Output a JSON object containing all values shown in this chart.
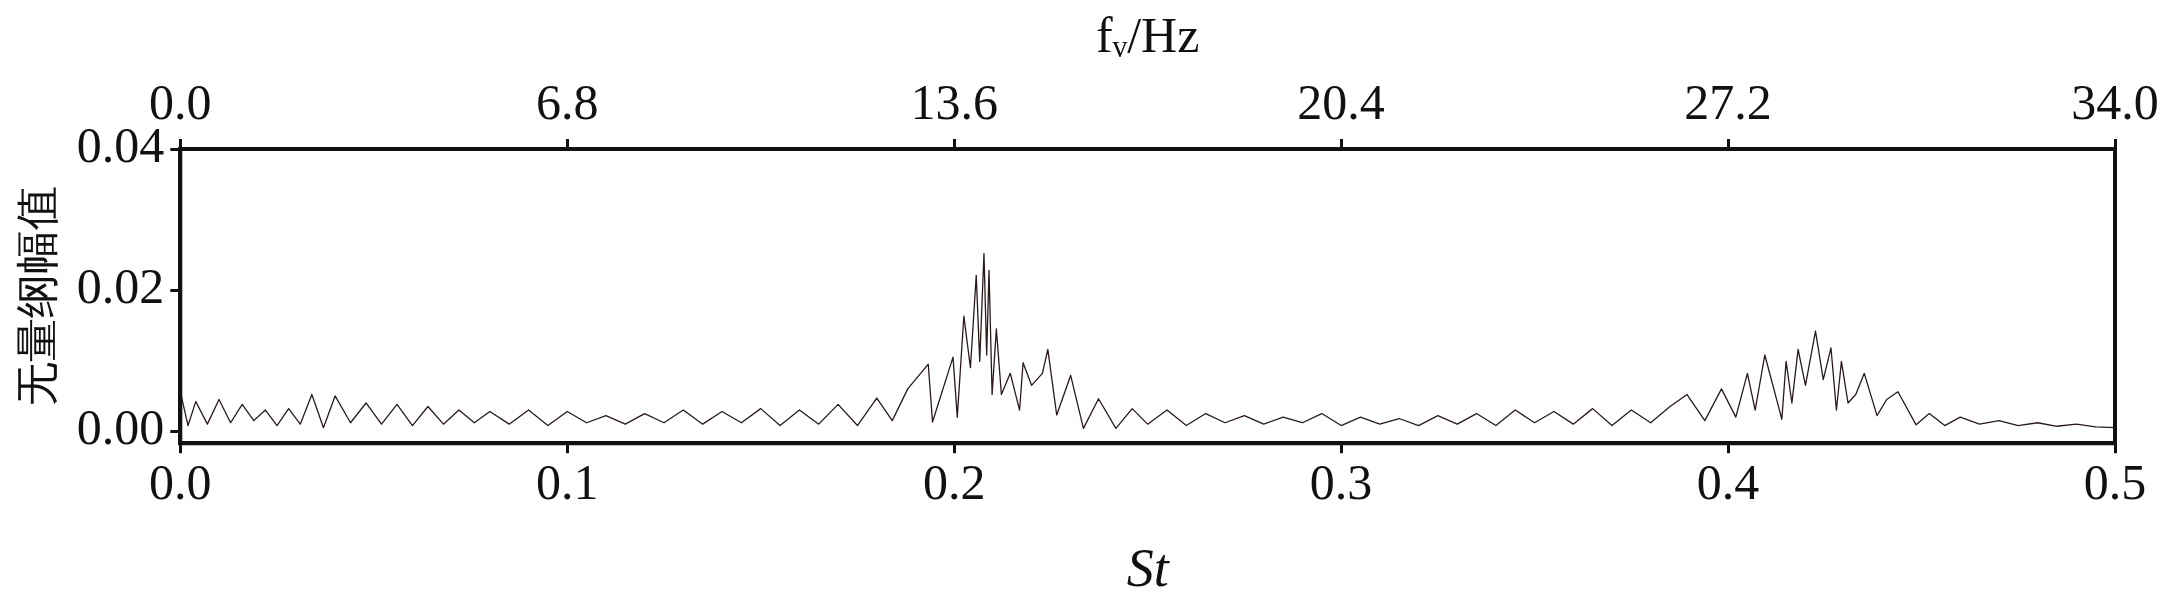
{
  "chart_data": {
    "type": "line",
    "xlabel": "St",
    "x2label": "fᵥ/Hz",
    "ylabel": "无量纲幅值",
    "xlim": [
      0,
      0.5
    ],
    "xticks": [
      {
        "value": 0,
        "label": "0.0"
      },
      0.1,
      0.2,
      0.3,
      0.4,
      {
        "value": 0.5,
        "label": "0.5"
      }
    ],
    "x2lim": [
      0,
      34
    ],
    "x2ticks": [
      {
        "value": 0,
        "label": "0.0"
      },
      6.8,
      13.6,
      20.4,
      27.2,
      {
        "value": 34,
        "label": "34.0"
      }
    ],
    "ylim": [
      -0.0017,
      0.04
    ],
    "yticks": [
      {
        "value": 0,
        "label": "0.00"
      },
      {
        "value": 0.02,
        "label": "0.02"
      },
      {
        "value": 0.04,
        "label": "0.04"
      }
    ],
    "grid": false,
    "legend": false,
    "marker": "none",
    "line_style": "solid",
    "series": [
      {
        "color": "#2a1a1a",
        "x": [
          0,
          0.002,
          0.004,
          0.007,
          0.01,
          0.013,
          0.016,
          0.019,
          0.022,
          0.025,
          0.028,
          0.031,
          0.034,
          0.037,
          0.04,
          0.044,
          0.048,
          0.052,
          0.056,
          0.06,
          0.064,
          0.068,
          0.072,
          0.076,
          0.08,
          0.085,
          0.09,
          0.095,
          0.1,
          0.105,
          0.11,
          0.115,
          0.12,
          0.125,
          0.13,
          0.135,
          0.14,
          0.145,
          0.15,
          0.155,
          0.16,
          0.165,
          0.17,
          0.175,
          0.18,
          0.184,
          0.188,
          0.1933,
          0.1944,
          0.1997,
          0.2008,
          0.2025,
          0.2042,
          0.2057,
          0.2066,
          0.2077,
          0.2084,
          0.209,
          0.2098,
          0.2109,
          0.2122,
          0.2145,
          0.2169,
          0.2178,
          0.22,
          0.2228,
          0.2242,
          0.2265,
          0.2301,
          0.2334,
          0.2373,
          0.2418,
          0.246,
          0.25,
          0.255,
          0.26,
          0.265,
          0.27,
          0.275,
          0.28,
          0.285,
          0.29,
          0.295,
          0.3,
          0.305,
          0.31,
          0.315,
          0.32,
          0.325,
          0.33,
          0.335,
          0.34,
          0.345,
          0.35,
          0.355,
          0.36,
          0.365,
          0.37,
          0.375,
          0.38,
          0.385,
          0.3894,
          0.394,
          0.3983,
          0.402,
          0.405,
          0.407,
          0.4095,
          0.4139,
          0.415,
          0.4165,
          0.4181,
          0.42,
          0.4226,
          0.4246,
          0.4266,
          0.428,
          0.4293,
          0.431,
          0.433,
          0.4352,
          0.4385,
          0.441,
          0.4439,
          0.4486,
          0.452,
          0.456,
          0.46,
          0.465,
          0.47,
          0.475,
          0.48,
          0.485,
          0.49,
          0.495,
          0.5
        ],
        "values": [
          0.0056,
          0.0008,
          0.0042,
          0.001,
          0.0045,
          0.0012,
          0.0038,
          0.0015,
          0.003,
          0.0008,
          0.0032,
          0.001,
          0.0052,
          0.0005,
          0.005,
          0.0012,
          0.004,
          0.001,
          0.0038,
          0.0008,
          0.0035,
          0.001,
          0.003,
          0.0012,
          0.0028,
          0.001,
          0.003,
          0.0008,
          0.0028,
          0.0012,
          0.0022,
          0.001,
          0.0025,
          0.0012,
          0.003,
          0.001,
          0.0028,
          0.0012,
          0.0032,
          0.0008,
          0.003,
          0.001,
          0.0038,
          0.0008,
          0.0047,
          0.0015,
          0.006,
          0.0095,
          0.0013,
          0.0105,
          0.002,
          0.0163,
          0.009,
          0.0221,
          0.0099,
          0.0252,
          0.0108,
          0.0228,
          0.0052,
          0.0145,
          0.0052,
          0.0082,
          0.003,
          0.0097,
          0.0065,
          0.0082,
          0.0116,
          0.0023,
          0.0079,
          0.0004,
          0.0046,
          0.0004,
          0.0032,
          0.001,
          0.003,
          0.0008,
          0.0025,
          0.0012,
          0.0022,
          0.001,
          0.002,
          0.0012,
          0.0025,
          0.0008,
          0.002,
          0.001,
          0.0018,
          0.0008,
          0.0022,
          0.001,
          0.0025,
          0.0008,
          0.003,
          0.0012,
          0.0028,
          0.001,
          0.0032,
          0.0008,
          0.003,
          0.0012,
          0.0035,
          0.0052,
          0.0015,
          0.006,
          0.002,
          0.0082,
          0.003,
          0.0108,
          0.0017,
          0.0099,
          0.004,
          0.0116,
          0.0065,
          0.0142,
          0.0073,
          0.0118,
          0.003,
          0.0099,
          0.004,
          0.0052,
          0.0082,
          0.0022,
          0.0045,
          0.0056,
          0.0009,
          0.0025,
          0.0008,
          0.002,
          0.001,
          0.0015,
          0.0008,
          0.0012,
          0.0007,
          0.001,
          0.0006,
          0.0005
        ]
      }
    ]
  }
}
